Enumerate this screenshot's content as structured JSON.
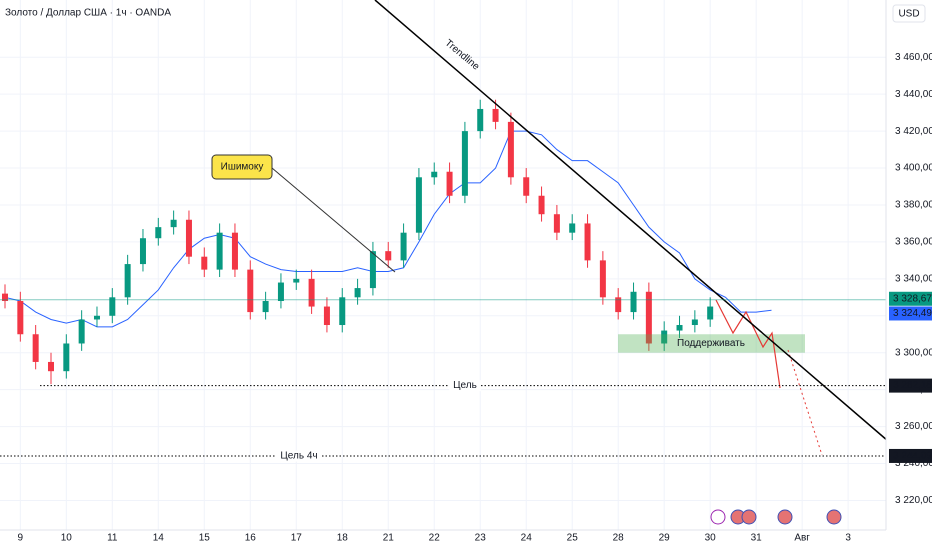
{
  "chart_data": {
    "type": "candlestick",
    "title": "Золото / Доллар США · 1ч · OANDA",
    "currency": "USD",
    "up_color": "#089981",
    "down_color": "#f23645",
    "open": [
      3332,
      3328,
      3310,
      3295,
      3290,
      3305,
      3318,
      3320,
      3330,
      3348,
      3362,
      3368,
      3372,
      3352,
      3345,
      3365,
      3345,
      3322,
      3328,
      3338,
      3340,
      3325,
      3315,
      3330,
      3335,
      3355,
      3350,
      3365,
      3395,
      3398,
      3385,
      3420,
      3432,
      3425,
      3395,
      3385,
      3375,
      3365,
      3370,
      3350,
      3330,
      3322,
      3333,
      3305,
      3312,
      3315,
      3318
    ],
    "high": [
      3337,
      3333,
      3315,
      3300,
      3310,
      3323,
      3325,
      3335,
      3353,
      3367,
      3373,
      3377,
      3377,
      3357,
      3370,
      3370,
      3350,
      3333,
      3343,
      3345,
      3345,
      3330,
      3335,
      3340,
      3360,
      3360,
      3370,
      3400,
      3403,
      3403,
      3425,
      3437,
      3437,
      3430,
      3400,
      3390,
      3380,
      3375,
      3375,
      3355,
      3335,
      3338,
      3338,
      3317,
      3320,
      3323,
      3330
    ],
    "low": [
      3324,
      3306,
      3291,
      3283,
      3286,
      3301,
      3314,
      3316,
      3326,
      3344,
      3358,
      3364,
      3348,
      3341,
      3341,
      3341,
      3318,
      3318,
      3324,
      3334,
      3321,
      3311,
      3311,
      3326,
      3331,
      3346,
      3346,
      3361,
      3391,
      3381,
      3381,
      3416,
      3421,
      3391,
      3381,
      3371,
      3361,
      3361,
      3346,
      3326,
      3318,
      3318,
      3301,
      3301,
      3308,
      3311,
      3314
    ],
    "close": [
      3328,
      3310,
      3295,
      3290,
      3305,
      3318,
      3320,
      3330,
      3348,
      3362,
      3368,
      3372,
      3352,
      3345,
      3365,
      3345,
      3322,
      3328,
      3338,
      3340,
      3325,
      3315,
      3330,
      3335,
      3355,
      3350,
      3365,
      3395,
      3398,
      3385,
      3420,
      3432,
      3425,
      3395,
      3385,
      3375,
      3365,
      3370,
      3350,
      3330,
      3322,
      3333,
      3305,
      3312,
      3315,
      3318,
      3325
    ],
    "series": [
      {
        "color": "#2962ff",
        "values": [
          3330,
          3328,
          3322,
          3318,
          3316,
          3318,
          3314,
          3314,
          3318,
          3326,
          3334,
          3346,
          3356,
          3362,
          3364,
          3362,
          3352,
          3348,
          3345,
          3344,
          3344,
          3344,
          3344,
          3346,
          3344,
          3344,
          3346,
          3360,
          3375,
          3386,
          3392,
          3392,
          3400,
          3420,
          3420,
          3418,
          3410,
          3404,
          3404,
          3398,
          3392,
          3380,
          3368,
          3360,
          3354,
          3340,
          3334,
          3330,
          3322,
          3322,
          3323
        ]
      }
    ],
    "ylim": [
      3204,
      3491
    ],
    "yticks": [
      {
        "value": 3220,
        "label": "3 220,000"
      },
      {
        "value": 3240,
        "label": "3 240,000"
      },
      {
        "value": 3260,
        "label": "3 260,000"
      },
      {
        "value": 3280,
        "label": "3 280,000"
      },
      {
        "value": 3300,
        "label": "3 300,000"
      },
      {
        "value": 3320,
        "label": "3 320,000"
      },
      {
        "value": 3340,
        "label": "3 340,000"
      },
      {
        "value": 3360,
        "label": "3 360,000"
      },
      {
        "value": 3380,
        "label": "3 380,000"
      },
      {
        "value": 3400,
        "label": "3 400,000"
      },
      {
        "value": 3420,
        "label": "3 420,000"
      },
      {
        "value": 3440,
        "label": "3 440,000"
      },
      {
        "value": 3460,
        "label": "3 460,000"
      }
    ],
    "xticks": [
      {
        "value": 1,
        "label": "9"
      },
      {
        "value": 4,
        "label": "10"
      },
      {
        "value": 7,
        "label": "11"
      },
      {
        "value": 10,
        "label": "14"
      },
      {
        "value": 13,
        "label": "15"
      },
      {
        "value": 16,
        "label": "16"
      },
      {
        "value": 19,
        "label": "17"
      },
      {
        "value": 22,
        "label": "18"
      },
      {
        "value": 25,
        "label": "21"
      },
      {
        "value": 28,
        "label": "22"
      },
      {
        "value": 31,
        "label": "23"
      },
      {
        "value": 34,
        "label": "24"
      },
      {
        "value": 37,
        "label": "25"
      },
      {
        "value": 40,
        "label": "28"
      },
      {
        "value": 43,
        "label": "29"
      },
      {
        "value": 46,
        "label": "30"
      },
      {
        "value": 49,
        "label": "31"
      },
      {
        "value": 52,
        "label": "Авг"
      },
      {
        "value": 55,
        "label": "3"
      }
    ],
    "levels": [
      {
        "value": 3282.189,
        "label": "3 282,189",
        "text": "Цель"
      },
      {
        "value": 3244.098,
        "label": "3 244,098",
        "text": "Цель 4ч"
      }
    ],
    "prices": [
      {
        "value": 3328.67,
        "label": "3 328,670",
        "color": "#089981"
      },
      {
        "value": 3324.498,
        "label": "3 324,498",
        "color": "#2962ff"
      }
    ],
    "support": {
      "text": "Поддерживать",
      "range": [
        3300,
        3310
      ]
    },
    "annotations": {
      "trendline": "Trendline",
      "ichimoku": "Ишимоку"
    }
  }
}
